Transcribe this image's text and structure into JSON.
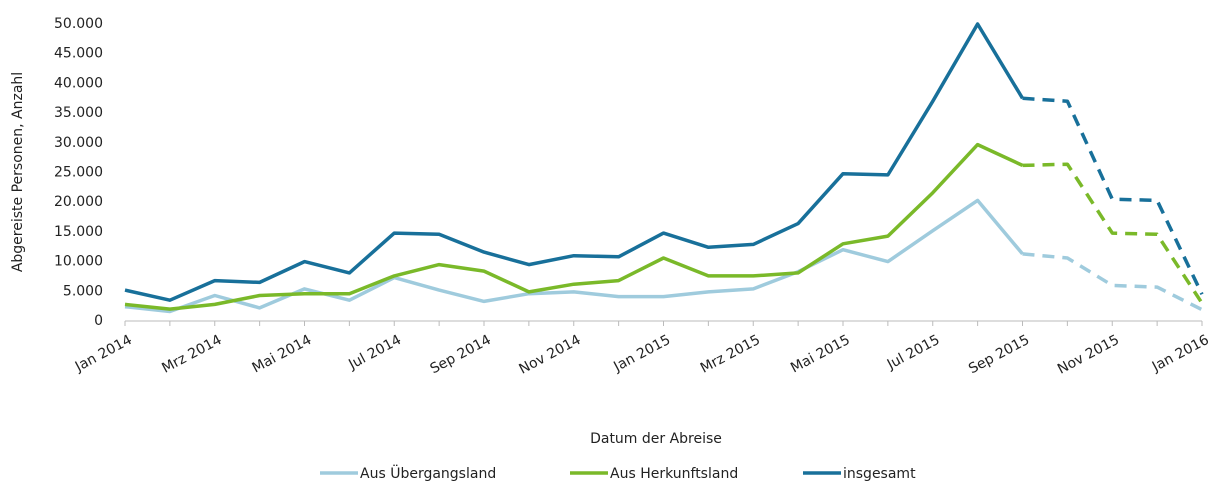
{
  "chart_data": {
    "type": "line",
    "x_label": "Datum der Abreise",
    "y_label": "Abgereiste Personen, Anzahl",
    "categories": [
      "Jan 2014",
      null,
      "Mrz 2014",
      null,
      "Mai 2014",
      null,
      "Jul 2014",
      null,
      "Sep 2014",
      null,
      "Nov 2014",
      null,
      "Jan 2015",
      null,
      "Mrz 2015",
      null,
      "Mai 2015",
      null,
      "Jul 2015",
      null,
      "Sep 2015",
      null,
      "Nov 2015",
      null,
      "Jan 2016"
    ],
    "dashed_from": "Sep 2015",
    "series": [
      {
        "name": "Aus Übergangsland",
        "color": "#9fcbdd",
        "values": [
          2400,
          1600,
          4300,
          2200,
          5400,
          3500,
          7300,
          5200,
          3300,
          4600,
          4900,
          4100,
          4100,
          4900,
          5400,
          8300,
          12000,
          10000,
          15200,
          20300,
          11300,
          10600,
          6000,
          5700,
          1900
        ]
      },
      {
        "name": "Aus Herkunftsland",
        "color": "#7ab929",
        "values": [
          2800,
          2000,
          2800,
          4300,
          4600,
          4600,
          7600,
          9500,
          8400,
          4900,
          6200,
          6800,
          10600,
          7600,
          7600,
          8100,
          13000,
          14300,
          21600,
          29700,
          26200,
          26400,
          14800,
          14600,
          3000
        ]
      },
      {
        "name": "insgesamt",
        "color": "#18709a",
        "values": [
          5200,
          3500,
          6800,
          6500,
          10000,
          8100,
          14800,
          14600,
          11600,
          9500,
          11000,
          10800,
          14800,
          12400,
          12900,
          16400,
          24800,
          24600,
          37000,
          50000,
          37500,
          37000,
          20500,
          20300,
          4500
        ]
      }
    ],
    "ylim": [
      0,
      50000
    ],
    "yticks": [
      0,
      {
        "value": 5000,
        "label": "5.000"
      },
      {
        "value": 10000,
        "label": "10.000"
      },
      {
        "value": 15000,
        "label": "15.000"
      },
      {
        "value": 20000,
        "label": "20.000"
      },
      {
        "value": 25000,
        "label": "25.000"
      },
      {
        "value": 30000,
        "label": "30.000"
      },
      {
        "value": 35000,
        "label": "35.000"
      },
      {
        "value": 40000,
        "label": "40.000"
      },
      {
        "value": 45000,
        "label": "45.000"
      },
      {
        "value": 50000,
        "label": "50.000"
      }
    ],
    "grid": false,
    "legend": "bottom"
  }
}
